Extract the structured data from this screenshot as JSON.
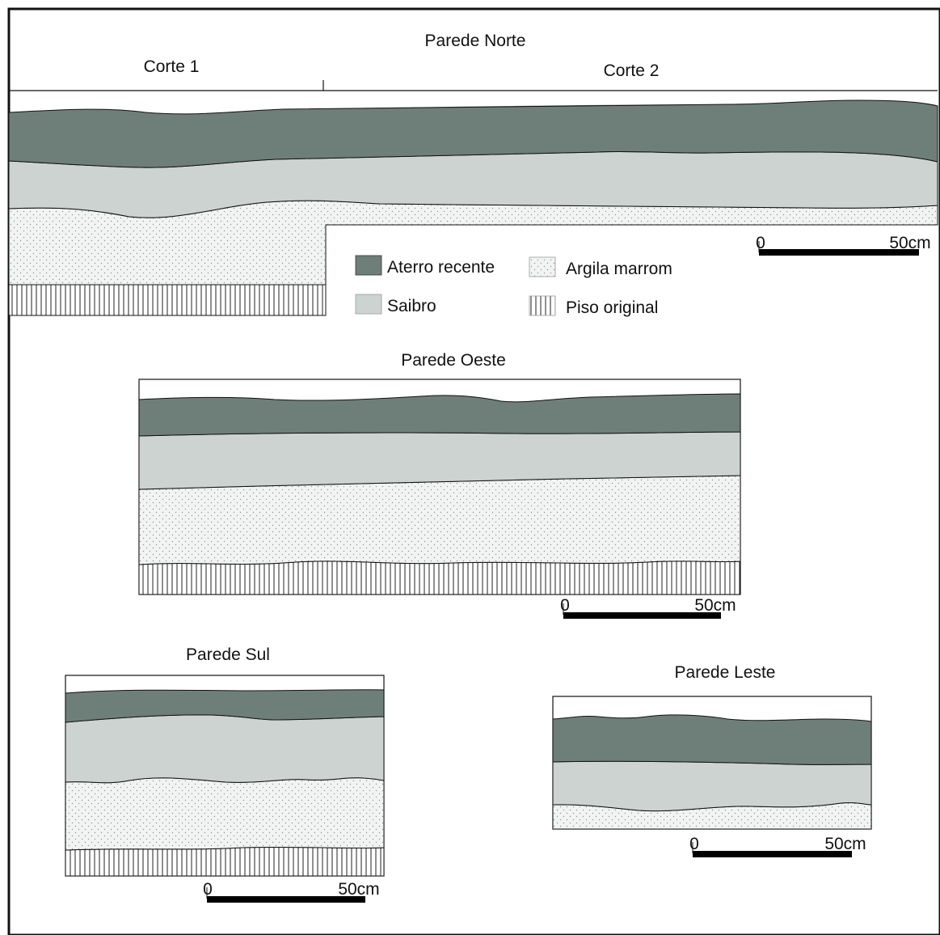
{
  "colors": {
    "aterro": "#6e7f79",
    "saibro": "#cdd3d0",
    "argila_bg": "#f2f3f3",
    "argila_dot": "#8e9896",
    "piso_line": "#222222",
    "outline": "#111111"
  },
  "parede_norte": {
    "title": "Parede Norte",
    "corte1": "Corte 1",
    "corte2": "Corte 2",
    "scale_zero": "0",
    "scale_end": "50cm"
  },
  "legend": {
    "aterro": "Aterro recente",
    "saibro": "Saibro",
    "argila": "Argila marrom",
    "piso": "Piso original"
  },
  "parede_oeste": {
    "title": "Parede Oeste",
    "scale_zero": "0",
    "scale_end": "50cm"
  },
  "parede_sul": {
    "title": "Parede Sul",
    "scale_zero": "0",
    "scale_end": "50cm"
  },
  "parede_leste": {
    "title": "Parede Leste",
    "scale_zero": "0",
    "scale_end": "50cm"
  }
}
